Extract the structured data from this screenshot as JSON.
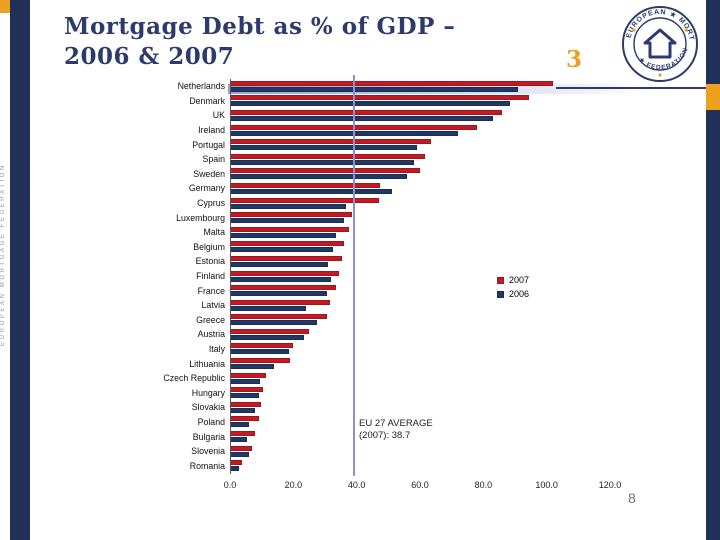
{
  "slide": {
    "title_lines": [
      "Mortgage Debt as % of GDP –",
      "2006 & 2007"
    ],
    "slide_number": "3",
    "page_number": "8",
    "side_text": "EUROPEAN MORTGAGE FEDERATION",
    "logo": {
      "arc_top": "EUROPEAN ★ MORTGAGE",
      "arc_bottom": "★ FEDERATION ★"
    }
  },
  "colors": {
    "navy_band": "#203056",
    "accent_orange": "#EEA01F",
    "title_navy": "#2C3A6E",
    "bar_red": "#C21B26",
    "bar_navy": "#203864",
    "average_line": "#8B93CF"
  },
  "chart_data": {
    "type": "bar",
    "orientation": "horizontal",
    "title": "Mortgage Debt as % of GDP – 2006 & 2007",
    "xlabel": "",
    "ylabel": "",
    "xlim": [
      0,
      120
    ],
    "x_ticks": [
      "0.0",
      "20.0",
      "40.0",
      "60.0",
      "80.0",
      "100.0",
      "120.0"
    ],
    "grid": false,
    "legend_position": "middle-right",
    "categories": [
      "Netherlands",
      "Denmark",
      "UK",
      "Ireland",
      "Portugal",
      "Spain",
      "Sweden",
      "Germany",
      "Cyprus",
      "Luxembourg",
      "Malta",
      "Belgium",
      "Estonia",
      "Finland",
      "France",
      "Latvia",
      "Greece",
      "Austria",
      "Italy",
      "Lithuania",
      "Czech Republic",
      "Hungary",
      "Slovakia",
      "Poland",
      "Bulgaria",
      "Slovenia",
      "Romania"
    ],
    "series": [
      {
        "name": "2007",
        "color": "#C21B26",
        "values": [
          102.0,
          94.5,
          86.0,
          78.0,
          63.5,
          61.5,
          60.0,
          47.5,
          47.0,
          38.5,
          37.5,
          36.0,
          35.5,
          34.5,
          33.5,
          31.5,
          30.5,
          25.0,
          20.0,
          19.0,
          11.5,
          10.5,
          9.8,
          9.0,
          8.0,
          7.0,
          3.8
        ]
      },
      {
        "name": "2006",
        "color": "#203864",
        "values": [
          91.0,
          88.5,
          83.0,
          72.0,
          59.0,
          58.0,
          56.0,
          51.0,
          36.5,
          36.0,
          33.5,
          32.5,
          31.0,
          32.0,
          30.5,
          24.0,
          27.5,
          23.5,
          18.5,
          14.0,
          9.5,
          9.0,
          8.0,
          6.0,
          5.5,
          6.0,
          2.7
        ]
      }
    ],
    "average_line": {
      "value": 38.7,
      "label_line1": "EU 27 AVERAGE",
      "label_line2": "(2007): 38.7"
    }
  }
}
